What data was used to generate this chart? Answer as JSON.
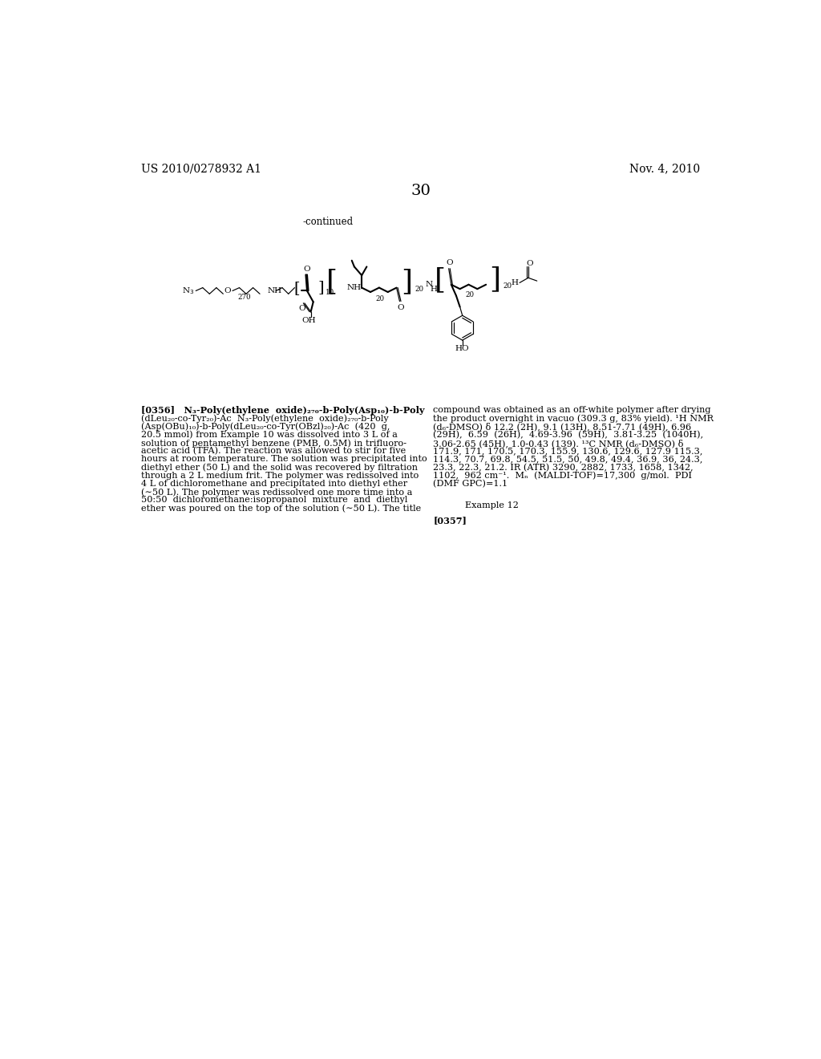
{
  "bg": "#ffffff",
  "header_left": "US 2010/0278932 A1",
  "header_right": "Nov. 4, 2010",
  "page_num": "30",
  "continued": "-continued",
  "left_lines": [
    "[0356]   N₃-Poly(ethylene  oxide)₂₇₀-b-Poly(Asp₁₀)-b-Poly",
    "(dLeu₂₀-co-Tyr₂₀)-Ac  N₃-Poly(ethylene  oxide)₂₇₀-b-Poly",
    "(Asp(OBu)₁₀)-b-Poly(dLeu₂₀-co-Tyr(OBzl)₂₀)-Ac  (420  g,",
    "20.5 mmol) from Example 10 was dissolved into 3 L of a",
    "solution of pentamethyl benzene (PMB, 0.5M) in trifluoro-",
    "acetic acid (TFA). The reaction was allowed to stir for five",
    "hours at room temperature. The solution was precipitated into",
    "diethyl ether (50 L) and the solid was recovered by filtration",
    "through a 2 L medium frit. The polymer was redissolved into",
    "4 L of dichloromethane and precipitated into diethyl ether",
    "(∼50 L). The polymer was redissolved one more time into a",
    "50:50  dichloromethane:isopropanol  mixture  and  diethyl",
    "ether was poured on the top of the solution (∼50 L). The title"
  ],
  "right_lines": [
    "compound was obtained as an off-white polymer after drying",
    "the product overnight in vacuo (309.3 g, 83% yield). ¹H NMR",
    "(d₆-DMSO) δ 12.2 (2H), 9.1 (13H), 8.51-7.71 (49H), 6.96",
    "(29H),  6.59  (26H),  4.69-3.96  (59H),  3.81-3.25  (1040H),",
    "3.06-2.65 (45H), 1.0-0.43 (139). ¹³C NMR (d₆-DMSO) δ",
    "171.9, 171, 170.5, 170.3, 155.9, 130.6, 129.6, 127.9 115.3,",
    "114.3, 70.7, 69.8, 54.5, 51.5, 50, 49.8, 49.4, 36.9, 36, 24.3,",
    "23.3, 22.3, 21.2. IR (ATR) 3290, 2882, 1733, 1658, 1342,",
    "1102,  962 cm⁻¹.  Mₙ  (MALDI-TOF)=17,300  g/mol.  PDI",
    "(DMF GPC)=1.1"
  ],
  "example12": "Example 12",
  "p0357": "[0357]"
}
